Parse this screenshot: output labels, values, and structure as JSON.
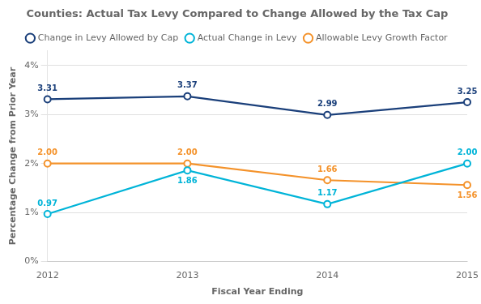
{
  "chart_data": {
    "type": "line",
    "title": "Counties: Actual Tax Levy Compared to Change Allowed by the Tax Cap",
    "xlabel": "Fiscal Year Ending",
    "ylabel": "Percentage Change from Prior Year",
    "categories": [
      "2012",
      "2013",
      "2014",
      "2015"
    ],
    "series": [
      {
        "name": "Change in Levy Allowed by Cap",
        "color": "#1a3f7a",
        "marker": "circle",
        "values": [
          3.31,
          3.37,
          2.99,
          3.25
        ],
        "value_labels": [
          "3.31",
          "3.37",
          "2.99",
          "3.25"
        ]
      },
      {
        "name": "Actual Change in Levy",
        "color": "#00b4d8",
        "marker": "circle",
        "values": [
          0.97,
          1.86,
          1.17,
          2.0
        ],
        "value_labels": [
          "0.97",
          "1.86",
          "1.17",
          "2.00"
        ]
      },
      {
        "name": "Allowable Levy Growth Factor",
        "color": "#f4922a",
        "marker": "circle",
        "values": [
          2.0,
          2.0,
          1.66,
          1.56
        ],
        "value_labels": [
          "2.00",
          "2.00",
          "1.66",
          "1.56"
        ]
      }
    ],
    "ylim": [
      0,
      4.3
    ],
    "yticks": [
      {
        "value": 0,
        "label": "0%"
      },
      {
        "value": 1,
        "label": "1%"
      },
      {
        "value": 2,
        "label": "2%"
      },
      {
        "value": 3,
        "label": "3%"
      },
      {
        "value": 4,
        "label": "4%"
      }
    ],
    "grid": true,
    "legend": "top",
    "data_labels": true
  }
}
